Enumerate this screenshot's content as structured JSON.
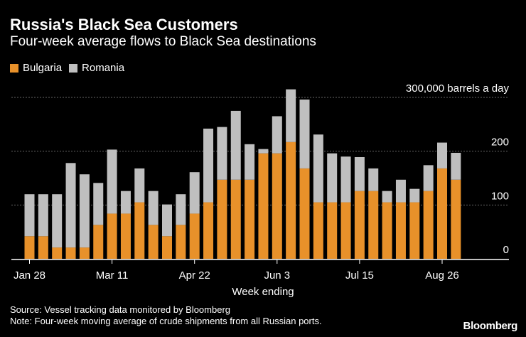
{
  "chart_data": {
    "type": "bar",
    "stacked": true,
    "title": "Russia's Black Sea Customers",
    "subtitle": "Four-week average flows to Black Sea destinations",
    "xlabel": "Week ending",
    "ylabel": "300,000 barrels a day",
    "ylim": [
      0,
      320
    ],
    "yticks": [
      {
        "value": 0,
        "label": "0"
      },
      {
        "value": 100,
        "label": "100"
      },
      {
        "value": 200,
        "label": "200"
      },
      {
        "value": 300,
        "label": "300,000 barrels a day"
      }
    ],
    "xticks": [
      {
        "index": 0,
        "label": "Jan 28"
      },
      {
        "index": 6,
        "label": "Mar 11"
      },
      {
        "index": 12,
        "label": "Apr 22"
      },
      {
        "index": 18,
        "label": "Jun 3"
      },
      {
        "index": 24,
        "label": "Jul 15"
      },
      {
        "index": 30,
        "label": "Aug 26"
      }
    ],
    "series": [
      {
        "name": "Bulgaria",
        "color": "#e8912a",
        "values": [
          42,
          42,
          21,
          21,
          21,
          63,
          84,
          84,
          105,
          63,
          42,
          63,
          84,
          105,
          147,
          147,
          147,
          196,
          196,
          217,
          168,
          105,
          105,
          105,
          126,
          126,
          105,
          105,
          105,
          126,
          168,
          147
        ]
      },
      {
        "name": "Romania",
        "color": "#bfbfbf",
        "values": [
          78,
          78,
          99,
          157,
          136,
          78,
          119,
          42,
          63,
          63,
          59,
          57,
          77,
          137,
          98,
          128,
          66,
          8,
          69,
          98,
          128,
          126,
          91,
          85,
          63,
          42,
          21,
          42,
          25,
          48,
          48,
          50
        ]
      }
    ]
  },
  "source": {
    "line1": "Source: Vessel tracking data monitored by Bloomberg",
    "line2": "Note: Four-week moving average of crude shipments from all Russian ports."
  },
  "brand": "Bloomberg",
  "colors": {
    "background": "#000000",
    "grid": "#666666",
    "axis": "#ffffff",
    "text": "#ffffff"
  }
}
